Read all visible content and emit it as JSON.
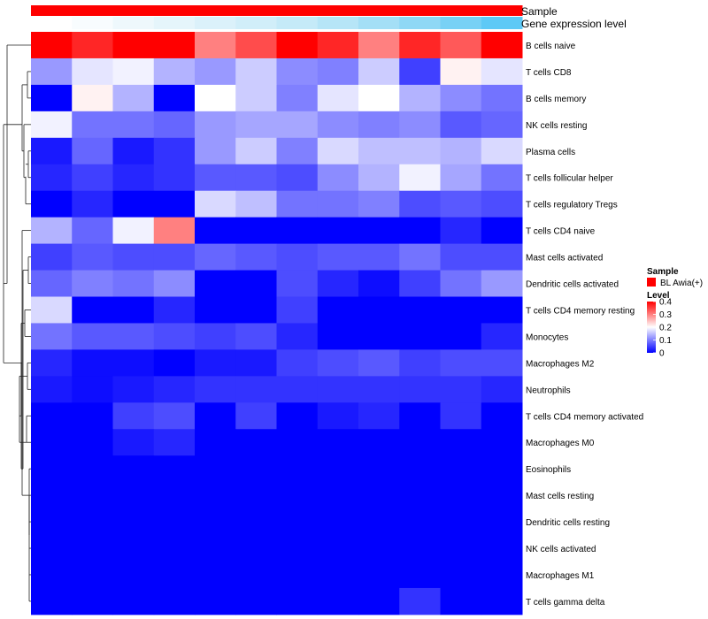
{
  "chart_data": {
    "type": "heatmap",
    "annotations": {
      "sample_label": "Sample",
      "expression_label": "Gene expression level",
      "sample_colors": [
        "#ff0000",
        "#ff0000",
        "#ff0000",
        "#ff0000",
        "#ff0000",
        "#ff0000",
        "#ff0000",
        "#ff0000",
        "#ff0000",
        "#ff0000",
        "#ff0000",
        "#ff0000"
      ],
      "expression_colors": [
        "#ffffff",
        "#f8fcfe",
        "#eef8fc",
        "#e5f5fb",
        "#dbf1fa",
        "#d1eef9",
        "#c5eaf8",
        "#b6e5f7",
        "#a4dff6",
        "#8fd8f5",
        "#78d1f5",
        "#5ec9f6"
      ]
    },
    "rows": [
      "B cells naive",
      "T cells CD8",
      "B cells memory",
      "NK cells resting",
      "Plasma cells",
      "T cells follicular helper",
      "T cells regulatory  Tregs",
      "T cells CD4 naive",
      "Mast cells activated",
      "Dendritic cells activated",
      "T cells CD4 memory resting",
      "Monocytes",
      "Macrophages M2",
      "Neutrophils",
      "T cells CD4 memory activated",
      "Macrophages M0",
      "Eosinophils",
      "Mast cells resting",
      "Dendritic cells resting",
      "NK cells activated",
      "Macrophages M1",
      "T cells gamma delta"
    ],
    "values": [
      [
        0.42,
        0.37,
        0.42,
        0.41,
        0.3,
        0.34,
        0.42,
        0.37,
        0.3,
        0.37,
        0.33,
        0.4
      ],
      [
        0.12,
        0.18,
        0.19,
        0.14,
        0.12,
        0.16,
        0.11,
        0.1,
        0.16,
        0.05,
        0.21,
        0.18
      ],
      [
        0.0,
        0.21,
        0.14,
        0.0,
        0.2,
        0.16,
        0.1,
        0.18,
        0.2,
        0.14,
        0.11,
        0.09
      ],
      [
        0.19,
        0.09,
        0.09,
        0.08,
        0.12,
        0.13,
        0.13,
        0.11,
        0.1,
        0.11,
        0.07,
        0.08
      ],
      [
        0.02,
        0.08,
        0.02,
        0.04,
        0.12,
        0.16,
        0.1,
        0.17,
        0.15,
        0.15,
        0.14,
        0.17
      ],
      [
        0.03,
        0.05,
        0.03,
        0.04,
        0.07,
        0.07,
        0.06,
        0.11,
        0.14,
        0.19,
        0.13,
        0.09
      ],
      [
        0.0,
        0.03,
        0.0,
        0.0,
        0.17,
        0.15,
        0.09,
        0.09,
        0.1,
        0.06,
        0.07,
        0.06
      ],
      [
        0.14,
        0.08,
        0.19,
        0.3,
        0.0,
        0.0,
        0.0,
        0.0,
        0.0,
        0.0,
        0.03,
        0.0
      ],
      [
        0.05,
        0.07,
        0.06,
        0.06,
        0.08,
        0.07,
        0.06,
        0.07,
        0.07,
        0.09,
        0.06,
        0.06
      ],
      [
        0.08,
        0.1,
        0.09,
        0.11,
        0.0,
        0.0,
        0.06,
        0.03,
        0.01,
        0.05,
        0.09,
        0.12
      ],
      [
        0.17,
        0.0,
        0.0,
        0.03,
        0.0,
        0.0,
        0.05,
        0.0,
        0.0,
        0.0,
        0.0,
        0.0
      ],
      [
        0.09,
        0.07,
        0.07,
        0.06,
        0.05,
        0.06,
        0.03,
        0.0,
        0.0,
        0.0,
        0.0,
        0.03
      ],
      [
        0.03,
        0.01,
        0.01,
        0.0,
        0.02,
        0.02,
        0.05,
        0.06,
        0.07,
        0.05,
        0.06,
        0.06
      ],
      [
        0.02,
        0.01,
        0.02,
        0.03,
        0.04,
        0.04,
        0.04,
        0.04,
        0.04,
        0.04,
        0.04,
        0.03
      ],
      [
        0.0,
        0.0,
        0.05,
        0.06,
        0.0,
        0.05,
        0.0,
        0.02,
        0.03,
        0.0,
        0.04,
        0.0
      ],
      [
        0.0,
        0.0,
        0.02,
        0.03,
        0.0,
        0.0,
        0.0,
        0.0,
        0.0,
        0.0,
        0.0,
        0.0
      ],
      [
        0.0,
        0.0,
        0.0,
        0.0,
        0.0,
        0.0,
        0.0,
        0.0,
        0.0,
        0.0,
        0.0,
        0.0
      ],
      [
        0.0,
        0.0,
        0.0,
        0.0,
        0.0,
        0.0,
        0.0,
        0.0,
        0.0,
        0.0,
        0.0,
        0.0
      ],
      [
        0.0,
        0.0,
        0.0,
        0.0,
        0.0,
        0.0,
        0.0,
        0.0,
        0.0,
        0.0,
        0.0,
        0.0
      ],
      [
        0.0,
        0.0,
        0.0,
        0.0,
        0.0,
        0.0,
        0.0,
        0.0,
        0.0,
        0.0,
        0.0,
        0.0
      ],
      [
        0.0,
        0.0,
        0.0,
        0.0,
        0.0,
        0.0,
        0.0,
        0.0,
        0.0,
        0.0,
        0.0,
        0.0
      ],
      [
        0.0,
        0.0,
        0.0,
        0.0,
        0.0,
        0.0,
        0.0,
        0.0,
        0.0,
        0.04,
        0.0,
        0.0
      ]
    ],
    "color_scale": {
      "low": "#0000ff",
      "mid": "#ffffff",
      "high": "#ff0000",
      "min": 0,
      "mid_value": 0.2,
      "max": 0.4
    },
    "legend": {
      "sample_title": "Sample",
      "sample_entry": "BL Awia(+)",
      "sample_color": "#ff0000",
      "level_title": "Level",
      "level_ticks": [
        "0.4",
        "0.3",
        "0.2",
        "0.1",
        "0"
      ],
      "level_tick_values": [
        0.4,
        0.3,
        0.2,
        0.1,
        0
      ]
    },
    "row_dendrogram": true
  }
}
